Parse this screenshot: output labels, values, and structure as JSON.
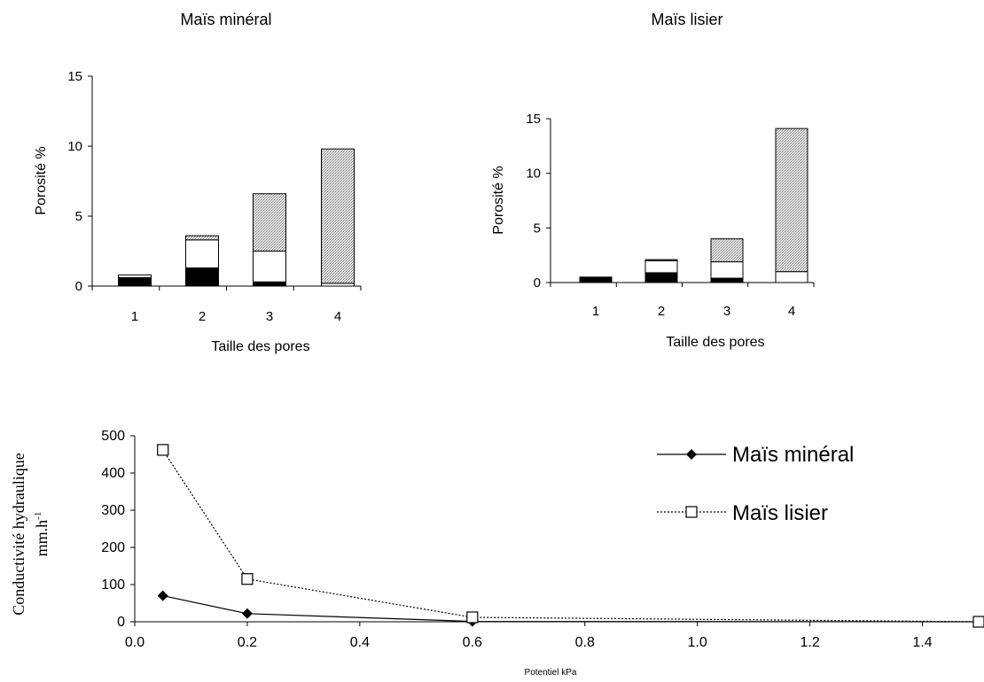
{
  "chart_data": [
    {
      "type": "bar",
      "stacked": true,
      "title": "Maïs minéral",
      "xlabel": "Taille des pores",
      "ylabel": "Porosité %",
      "categories": [
        "1",
        "2",
        "3",
        "4"
      ],
      "ylim": [
        0,
        15
      ],
      "yticks": [
        "0",
        "5",
        "10",
        "15"
      ],
      "series": [
        {
          "fill": "black",
          "values": [
            0.6,
            1.3,
            0.3,
            0.0
          ]
        },
        {
          "fill": "white",
          "values": [
            0.2,
            2.0,
            2.2,
            0.2
          ]
        },
        {
          "fill": "stippled",
          "values": [
            0.0,
            0.3,
            4.1,
            9.6
          ]
        }
      ]
    },
    {
      "type": "bar",
      "stacked": true,
      "title": "Maïs lisier",
      "xlabel": "Taille des pores",
      "ylabel": "Porosité %",
      "categories": [
        "1",
        "2",
        "3",
        "4"
      ],
      "ylim": [
        0,
        15
      ],
      "yticks": [
        "0",
        "5",
        "10",
        "15"
      ],
      "series": [
        {
          "fill": "black",
          "values": [
            0.5,
            0.9,
            0.4,
            0.0
          ]
        },
        {
          "fill": "white",
          "values": [
            0.0,
            1.1,
            1.5,
            1.0
          ]
        },
        {
          "fill": "stippled",
          "values": [
            0.0,
            0.1,
            2.1,
            13.1
          ]
        }
      ]
    },
    {
      "type": "line",
      "title": "",
      "xlabel": "Potentiel kPa",
      "ylabel": [
        "Conductivité hydraulique",
        "mm.h"
      ],
      "ylabel_superscript": "-1",
      "xlim": [
        0.0,
        1.5
      ],
      "ylim": [
        0,
        500
      ],
      "xticks": [
        "0.0",
        "0.2",
        "0.4",
        "0.6",
        "0.8",
        "1.0",
        "1.2",
        "1.4"
      ],
      "yticks": [
        "0",
        "100",
        "200",
        "300",
        "400",
        "500"
      ],
      "legend_position": "top-right",
      "series": [
        {
          "name": "Maïs minéral",
          "marker": "filled-diamond",
          "line": "solid",
          "x": [
            0.05,
            0.2,
            0.6,
            1.5
          ],
          "y": [
            70,
            22,
            1,
            0
          ]
        },
        {
          "name": "Maïs lisier",
          "marker": "open-square",
          "line": "dotted",
          "x": [
            0.05,
            0.2,
            0.6,
            1.5
          ],
          "y": [
            462,
            115,
            12,
            0
          ]
        }
      ]
    }
  ]
}
